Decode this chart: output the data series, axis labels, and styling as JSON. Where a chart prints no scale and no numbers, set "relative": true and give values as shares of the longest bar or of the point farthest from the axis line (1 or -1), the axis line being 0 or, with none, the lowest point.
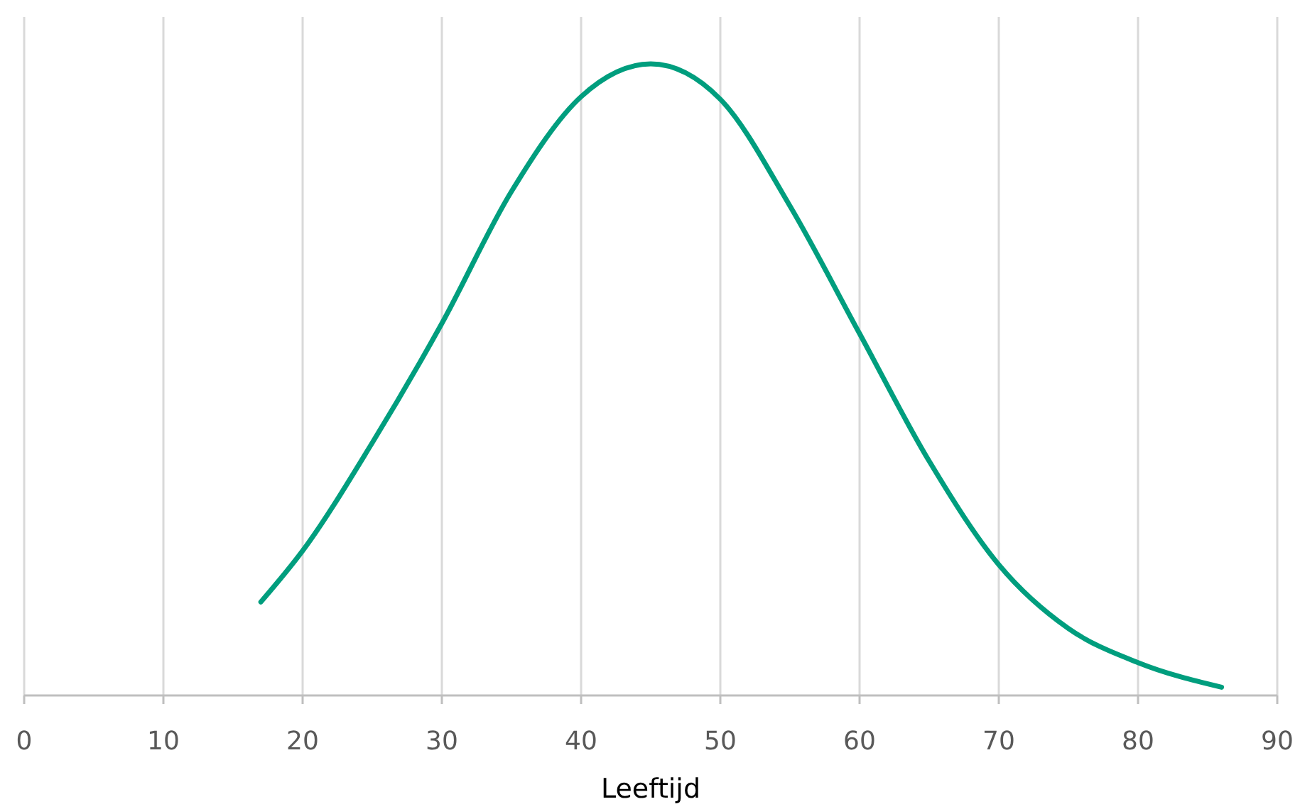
{
  "chart_data": {
    "type": "line",
    "relative": true,
    "xlabel": "Leeftijd",
    "xlim": [
      0,
      90
    ],
    "xticks": [
      0,
      10,
      20,
      30,
      40,
      50,
      60,
      70,
      80,
      90
    ],
    "grid": "x",
    "series": [
      {
        "color": "#009e7e",
        "x": [
          17,
          20,
          25,
          30,
          35,
          40,
          45,
          50,
          55,
          60,
          65,
          70,
          75,
          80,
          86
        ],
        "values": [
          0.148,
          0.229,
          0.4,
          0.589,
          0.798,
          0.948,
          1,
          0.944,
          0.775,
          0.573,
          0.371,
          0.207,
          0.106,
          0.052,
          0.013
        ]
      }
    ]
  }
}
